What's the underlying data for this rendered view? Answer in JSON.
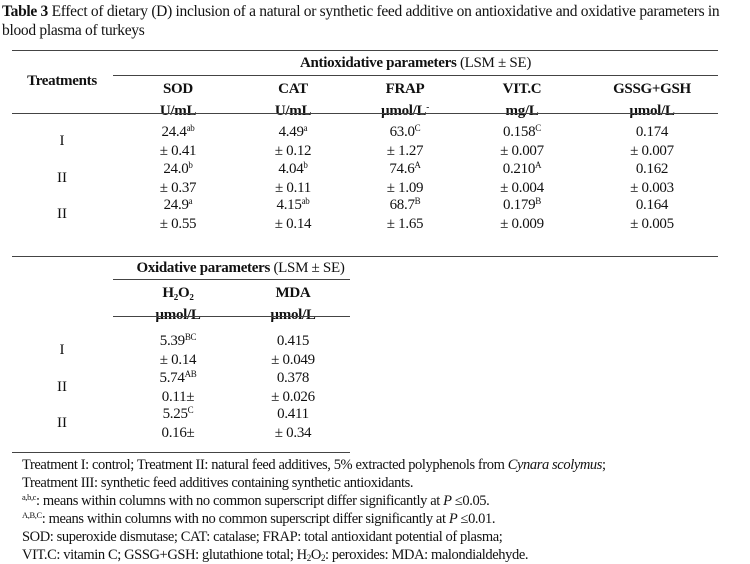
{
  "caption": {
    "label": "Table 3",
    "text": " Effect of dietary (D) inclusion of a natural or synthetic feed additive on antioxidative and oxidative parameters in blood plasma of turkeys"
  },
  "table1": {
    "group_header": "Antioxidative parameters",
    "group_suffix": " (LSM ± SE)",
    "row_header": "Treatments",
    "columns": [
      {
        "name": "SOD",
        "unit": "U/mL"
      },
      {
        "name": "CAT",
        "unit": "U/mL"
      },
      {
        "name": "FRAP",
        "unit": "µmol/L",
        "unit_sup": "-"
      },
      {
        "name": "VIT.C",
        "unit": "mg/L"
      },
      {
        "name": "GSSG+GSH",
        "unit": "µmol/L"
      }
    ],
    "rows": [
      {
        "treatment": "I",
        "cells": [
          {
            "mean": "24.4",
            "sup": "ab",
            "se": "± 0.41"
          },
          {
            "mean": "4.49",
            "sup": "a",
            "se": "± 0.12"
          },
          {
            "mean": "63.0",
            "sup": "C",
            "se": "± 1.27"
          },
          {
            "mean": "0.158",
            "sup": "C",
            "se": "± 0.007"
          },
          {
            "mean": "0.174",
            "sup": "",
            "se": "± 0.007"
          }
        ]
      },
      {
        "treatment": "II",
        "cells": [
          {
            "mean": "24.0",
            "sup": "b",
            "se": "± 0.37"
          },
          {
            "mean": "4.04",
            "sup": "b",
            "se": "± 0.11"
          },
          {
            "mean": "74.6",
            "sup": "A",
            "se": "± 1.09"
          },
          {
            "mean": "0.210",
            "sup": "A",
            "se": "± 0.004"
          },
          {
            "mean": "0.162",
            "sup": "",
            "se": "± 0.003"
          }
        ]
      },
      {
        "treatment": "II",
        "cells": [
          {
            "mean": "24.9",
            "sup": "a",
            "se": "± 0.55"
          },
          {
            "mean": "4.15",
            "sup": "ab",
            "se": "± 0.14"
          },
          {
            "mean": "68.7",
            "sup": "B",
            "se": "± 1.65"
          },
          {
            "mean": "0.179",
            "sup": "B",
            "se": "± 0.009"
          },
          {
            "mean": "0.164",
            "sup": "",
            "se": "± 0.005"
          }
        ]
      }
    ]
  },
  "table2": {
    "group_header": "Oxidative parameters",
    "group_suffix": " (LSM ± SE)",
    "columns": [
      {
        "name": "H₂O₂",
        "unit": "µmol/L"
      },
      {
        "name": "MDA",
        "unit": "µmol/L"
      }
    ],
    "rows": [
      {
        "treatment": "I",
        "cells": [
          {
            "mean": "5.39",
            "sup": "BC",
            "se": "± 0.14"
          },
          {
            "mean": "0.415",
            "sup": "",
            "se": "± 0.049"
          }
        ]
      },
      {
        "treatment": "II",
        "cells": [
          {
            "mean": "5.74",
            "sup": "AB",
            "se": "0.11±"
          },
          {
            "mean": "0.378",
            "sup": "",
            "se": "± 0.026"
          }
        ]
      },
      {
        "treatment": "II",
        "cells": [
          {
            "mean": "5.25",
            "sup": "C",
            "se": "0.16±"
          },
          {
            "mean": "0.411",
            "sup": "",
            "se": "± 0.34"
          }
        ]
      }
    ]
  },
  "footnotes": {
    "l1_a": "Treatment I: control; Treatment II: natural feed additives, 5% extracted polyphenols from ",
    "l1_species": "Cynara scolymus",
    "l1_b": ";",
    "l2": "Treatment III: synthetic feed additives containing synthetic antioxidants.",
    "l3_sup": "a,b,c",
    "l3_a": ": means within columns with no common superscript differ significantly at ",
    "l3_p": "P",
    "l3_b": " ≤0.05.",
    "l4_sup": "A,B,C",
    "l4_a": ": means within columns with no common superscript differ significantly at ",
    "l4_p": "P",
    "l4_b": " ≤0.01.",
    "l5": "SOD: superoxide dismutase; CAT: catalase; FRAP: total antioxidant potential of plasma;",
    "l6_a": "VIT.C: vitamin C; GSSG+GSH: glutathione total; H",
    "l6_sub1": "2",
    "l6_b": "O",
    "l6_sub2": "2",
    "l6_c": ": peroxides: MDA: malondialdehyde."
  }
}
